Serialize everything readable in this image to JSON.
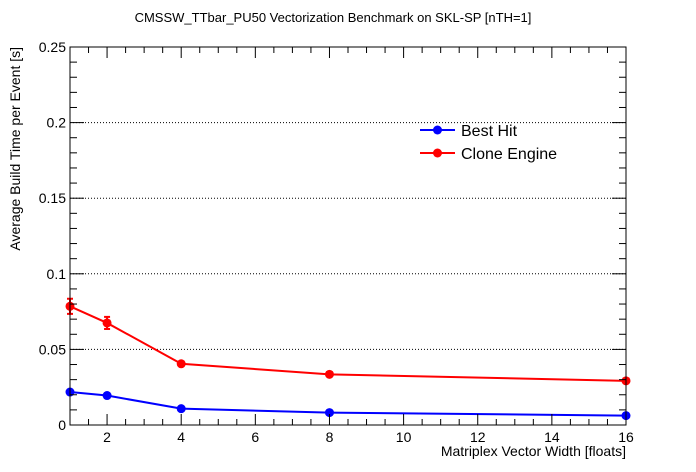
{
  "chart_data": {
    "type": "line",
    "title": "CMSSW_TTbar_PU50 Vectorization Benchmark on SKL-SP [nTH=1]",
    "xlabel": "Matriplex Vector Width [floats]",
    "ylabel": "Average Build Time per Event [s]",
    "xlim": [
      1,
      16
    ],
    "ylim": [
      0,
      0.25
    ],
    "x_ticks": [
      2,
      4,
      6,
      8,
      10,
      12,
      14,
      16
    ],
    "y_ticks": [
      0,
      0.05,
      0.1,
      0.15,
      0.2,
      0.25
    ],
    "y_tick_labels": [
      "0",
      "0.05",
      "0.1",
      "0.15",
      "0.2",
      "0.25"
    ],
    "grid": "horizontal dotted",
    "legend_position": "top-right",
    "series": [
      {
        "name": "Best Hit",
        "color": "#0000ff",
        "x": [
          1,
          2,
          4,
          8,
          16
        ],
        "y": [
          0.0218,
          0.0195,
          0.0108,
          0.0082,
          0.0062
        ],
        "err": [
          0.0015,
          0.0015,
          0.001,
          0.001,
          0.0015
        ]
      },
      {
        "name": "Clone Engine",
        "color": "#ff0000",
        "x": [
          1,
          2,
          4,
          8,
          16
        ],
        "y": [
          0.0785,
          0.0675,
          0.0405,
          0.0335,
          0.0292
        ],
        "err": [
          0.005,
          0.004,
          0.0015,
          0.0012,
          0.0015
        ]
      }
    ]
  }
}
